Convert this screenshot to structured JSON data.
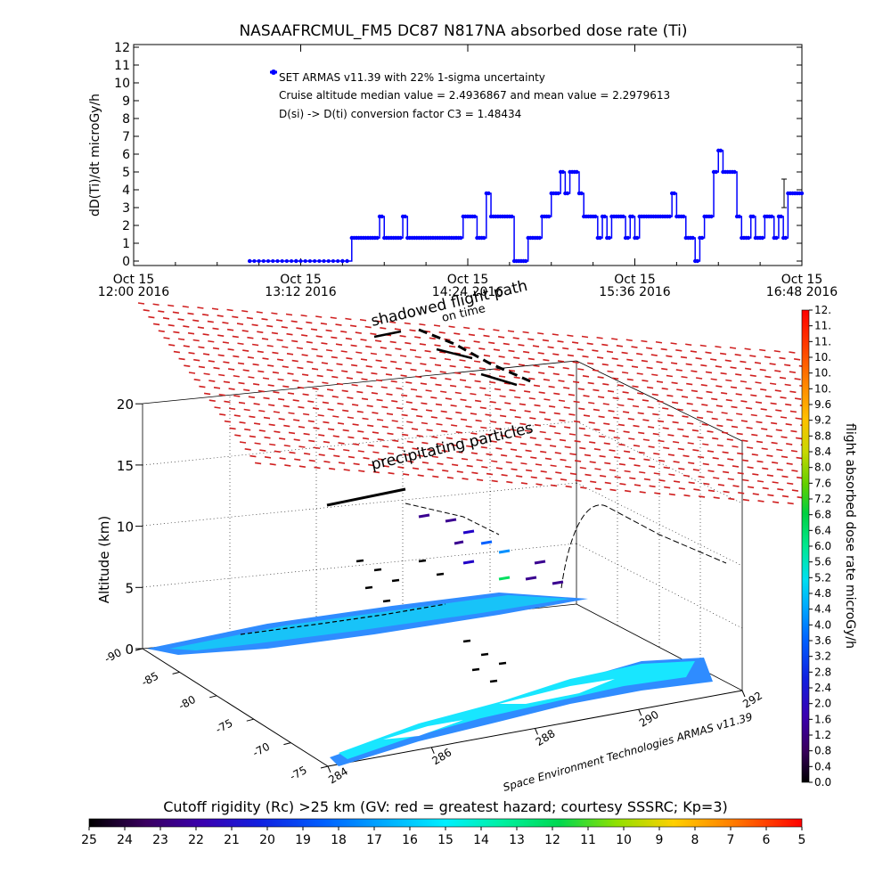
{
  "chart_data": [
    {
      "type": "line",
      "title": "NASAAFRCMUL_FM5 DC87 N817NA absorbed dose rate (Ti)",
      "ylabel": "dD(Ti)/dt microGy/h",
      "xlabel": "",
      "ylim": [
        0,
        12
      ],
      "yticks": [
        "0",
        "1",
        "2",
        "3",
        "4",
        "5",
        "6",
        "7",
        "8",
        "9",
        "10",
        "11",
        "12"
      ],
      "xticks": [
        {
          "line1": "Oct 15",
          "line2": "12:00 2016"
        },
        {
          "line1": "Oct 15",
          "line2": "13:12 2016"
        },
        {
          "line1": "Oct 15",
          "line2": "14:24 2016"
        },
        {
          "line1": "Oct 15",
          "line2": "15:36 2016"
        },
        {
          "line1": "Oct 15",
          "line2": "16:48 2016"
        }
      ],
      "annotations": [
        "SET ARMAS v11.39 with 22% 1-sigma uncertainty",
        "Cruise altitude median value = 2.4936867 and mean value = 2.2979613",
        "D(si) -> D(ti) conversion factor C3 = 1.48434"
      ],
      "legend": "top-left",
      "grid": false,
      "series": [
        {
          "name": "SET ARMAS v11.39 with 22% 1-sigma uncertainty",
          "color": "#0000ff",
          "x_units": "minutes after Oct 15 12:00 2016",
          "x": [
            50,
            90,
            94,
            96,
            98,
            100,
            102,
            104,
            106,
            108,
            110,
            112,
            114,
            116,
            118,
            120,
            122,
            124,
            126,
            128,
            130,
            132,
            134,
            136,
            138,
            140,
            142,
            144,
            146,
            148,
            150,
            152,
            154,
            156,
            158,
            160,
            162,
            164,
            166,
            168,
            170,
            172,
            174,
            176,
            178,
            180,
            182,
            184,
            186,
            188,
            190,
            192,
            194,
            196,
            198,
            200,
            202,
            204,
            206,
            208,
            210,
            212,
            214,
            216,
            218,
            220,
            222,
            224,
            226,
            228,
            230,
            232,
            234,
            236,
            238,
            240,
            242,
            244,
            246,
            248,
            250,
            252,
            254,
            256,
            258,
            260,
            262,
            264,
            266,
            268,
            270,
            272,
            274,
            276,
            278,
            280,
            282,
            284,
            286,
            288
          ],
          "values": [
            0,
            0,
            1.3,
            1.3,
            1.3,
            1.3,
            1.3,
            1.3,
            2.5,
            1.3,
            1.3,
            1.3,
            1.3,
            2.5,
            1.3,
            1.3,
            1.3,
            1.3,
            1.3,
            1.3,
            1.3,
            1.3,
            1.3,
            1.3,
            1.3,
            1.3,
            2.5,
            2.5,
            2.5,
            1.3,
            1.3,
            3.8,
            2.5,
            2.5,
            2.5,
            2.5,
            2.5,
            0,
            0,
            0,
            1.3,
            1.3,
            1.3,
            2.5,
            2.5,
            3.8,
            3.8,
            5,
            3.8,
            5,
            5,
            3.8,
            2.5,
            2.5,
            2.5,
            1.3,
            2.5,
            1.3,
            2.5,
            2.5,
            2.5,
            1.3,
            2.5,
            1.3,
            2.5,
            2.5,
            2.5,
            2.5,
            2.5,
            2.5,
            2.5,
            3.8,
            2.5,
            2.5,
            1.3,
            1.3,
            0,
            1.3,
            2.5,
            2.5,
            5,
            6.2,
            5,
            5,
            5,
            2.5,
            1.3,
            1.3,
            2.5,
            1.3,
            1.3,
            2.5,
            2.5,
            1.3,
            2.5,
            1.3,
            3.8,
            3.8,
            3.8,
            3.8
          ],
          "error_bar": {
            "x": 288,
            "value": 3.8,
            "low": 3.0,
            "high": 4.6
          }
        }
      ]
    },
    {
      "type": "scatter",
      "title": "Cutoff rigidity (Rc) >25 km (GV: red = greatest hazard; courtesy SSSRC; Kp=3)",
      "zlabel": "Altitude (km)",
      "zticks": [
        "0",
        "5",
        "10",
        "15",
        "20"
      ],
      "zlim": [
        0,
        20
      ],
      "latitude_ticks": [
        "-90",
        "-85",
        "-80",
        "-75",
        "-70",
        "-75"
      ],
      "longitude_ticks": [
        "284",
        "286",
        "288",
        "290",
        "292"
      ],
      "annotations": [
        "shadowed flight path",
        "on time",
        "precipitating particles"
      ],
      "credit": "Space Environment Technologies ARMAS v11.39",
      "rigidity_colorbar": {
        "labels": [
          "25",
          "24",
          "23",
          "22",
          "21",
          "20",
          "19",
          "18",
          "17",
          "16",
          "15",
          "14",
          "13",
          "12",
          "11",
          "10",
          "9",
          "8",
          "7",
          "6",
          "5"
        ],
        "colors": [
          "#000000",
          "#3a0060",
          "#3a0090",
          "#2000c8",
          "#0020e8",
          "#0060ff",
          "#0090ff",
          "#00b8ff",
          "#00e0ff",
          "#00ffe0",
          "#00ffa0",
          "#00e060",
          "#40e000",
          "#a0e000",
          "#d8d800",
          "#ffc000",
          "#ff9000",
          "#ff6000",
          "#ff3000",
          "#ff0000"
        ]
      },
      "dose_colorbar": {
        "label": "flight absorbed dose rate microGy/h",
        "labels": [
          "0.0",
          "0.4",
          "0.8",
          "1.2",
          "1.6",
          "2.0",
          "2.4",
          "2.8",
          "3.2",
          "3.6",
          "4.0",
          "4.4",
          "4.8",
          "5.2",
          "5.6",
          "6.0",
          "6.4",
          "6.8",
          "7.2",
          "7.6",
          "8.0",
          "8.4",
          "8.8",
          "9.2",
          "9.6",
          "10.",
          "10.",
          "10.",
          "11.",
          "11.",
          "12."
        ]
      }
    }
  ]
}
